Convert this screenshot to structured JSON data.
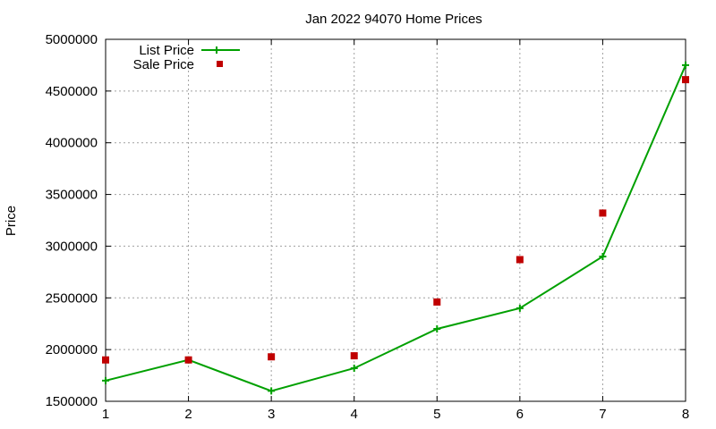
{
  "chart_data": {
    "type": "line",
    "title": "Jan 2022 94070 Home Prices",
    "xlabel": "",
    "ylabel": "Price",
    "xlim": [
      1,
      8
    ],
    "ylim": [
      1500000,
      5000000
    ],
    "x": [
      1,
      2,
      3,
      4,
      5,
      6,
      7,
      8
    ],
    "xticks": [
      "1",
      "2",
      "3",
      "4",
      "5",
      "6",
      "7",
      "8"
    ],
    "yticks": [
      "1500000",
      "2000000",
      "2500000",
      "3000000",
      "3500000",
      "4000000",
      "4500000",
      "5000000"
    ],
    "grid": true,
    "legend_position": "top-left",
    "series": [
      {
        "name": "List Price",
        "style": "line-with-plus-markers",
        "color": "#00a000",
        "values": [
          1700000,
          1900000,
          1600000,
          1820000,
          2200000,
          2400000,
          2900000,
          4750000
        ]
      },
      {
        "name": "Sale Price",
        "style": "square-markers",
        "color": "#c00000",
        "values": [
          1900000,
          1900000,
          1930000,
          1940000,
          2460000,
          2870000,
          3320000,
          4610000
        ]
      }
    ]
  }
}
